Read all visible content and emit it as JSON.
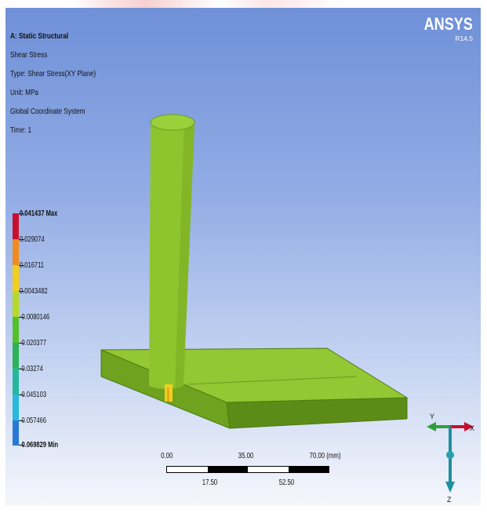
{
  "info": {
    "title": "A: Static Structural",
    "result_name": "Shear Stress",
    "type": "Type: Shear Stress(XY Plane)",
    "unit": "Unit: MPa",
    "coordinate_system": "Global Coordinate System",
    "time": "Time: 1"
  },
  "brand": {
    "logo": "ANSYS",
    "release": "R14.5"
  },
  "legend": {
    "labels": [
      "0.041437 Max",
      "0.029074",
      "0.016711",
      "0.0043482",
      "-0.0080146",
      "-0.020377",
      "-0.03274",
      "-0.045103",
      "-0.057466",
      "-0.069829 Min"
    ],
    "colors": [
      "#c8102e",
      "#f08c1e",
      "#f2cf1c",
      "#b6d92a",
      "#56c02c",
      "#2db25a",
      "#22b8a0",
      "#28b9dc",
      "#2a78d6",
      "#1a2fa8"
    ]
  },
  "model": {
    "colors": {
      "cylinder_body": "#8ec42e",
      "cylinder_top": "#9ad03a",
      "plate_top": "#93c733",
      "plate_front": "#6ea21f",
      "plate_side": "#5c8c17",
      "weld_hotspot": "#f2cf1c"
    }
  },
  "scale": {
    "top_labels": [
      "0.00",
      "35.00",
      "70.00 (mm)"
    ],
    "bottom_labels": [
      "17.50",
      "52.50"
    ]
  },
  "triad": {
    "y_label": "Y",
    "x_label": "X",
    "z_label": "Z",
    "colors": {
      "x": "#c8102e",
      "y": "#2ea03a",
      "z": "#1f8fa0"
    }
  }
}
